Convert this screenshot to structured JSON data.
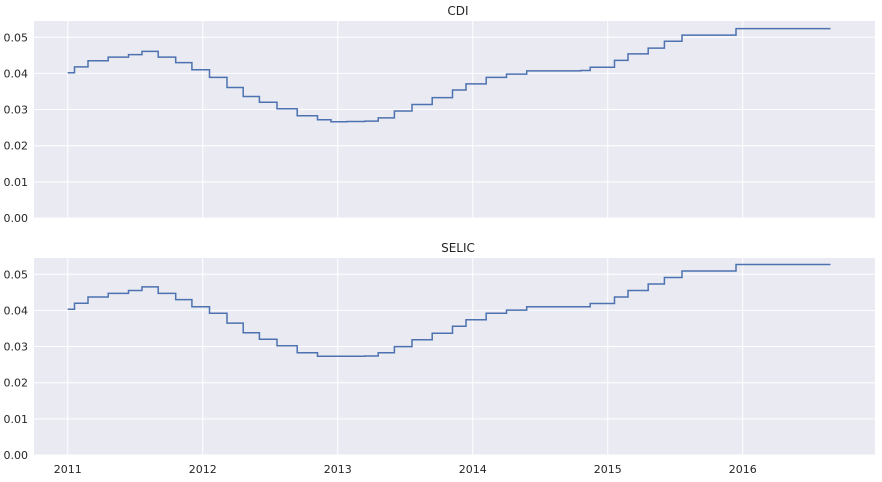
{
  "chart_data": [
    {
      "type": "line",
      "title": "CDI",
      "xlabel": "",
      "ylabel": "",
      "ylim": [
        0,
        0.0545
      ],
      "xlim": [
        2010.75,
        2016.98
      ],
      "y_ticks": [
        "0.00",
        "0.01",
        "0.02",
        "0.03",
        "0.04",
        "0.05"
      ],
      "x_ticks": [],
      "grid": true,
      "series": [
        {
          "color": "#4c72b0",
          "step": true,
          "x": [
            2011.0,
            2011.05,
            2011.15,
            2011.3,
            2011.45,
            2011.55,
            2011.67,
            2011.8,
            2011.92,
            2012.05,
            2012.18,
            2012.3,
            2012.42,
            2012.55,
            2012.7,
            2012.85,
            2012.95,
            2013.07,
            2013.2,
            2013.3,
            2013.42,
            2013.55,
            2013.7,
            2013.85,
            2013.95,
            2014.1,
            2014.25,
            2014.4,
            2014.55,
            2014.8,
            2014.87,
            2015.05,
            2015.15,
            2015.3,
            2015.42,
            2015.55,
            2015.95,
            2016.65
          ],
          "y": [
            0.0402,
            0.0418,
            0.0435,
            0.0445,
            0.0452,
            0.0461,
            0.0445,
            0.043,
            0.041,
            0.0389,
            0.0361,
            0.0336,
            0.032,
            0.0302,
            0.0283,
            0.0272,
            0.0266,
            0.0267,
            0.0268,
            0.0277,
            0.0296,
            0.0314,
            0.0333,
            0.0354,
            0.0371,
            0.0389,
            0.0398,
            0.0407,
            0.0407,
            0.0408,
            0.0417,
            0.0436,
            0.0454,
            0.047,
            0.0489,
            0.0506,
            0.0524,
            0.0524
          ]
        }
      ]
    },
    {
      "type": "line",
      "title": "SELIC",
      "xlabel": "",
      "ylabel": "",
      "ylim": [
        0,
        0.0545
      ],
      "xlim": [
        2010.75,
        2016.98
      ],
      "y_ticks": [
        "0.00",
        "0.01",
        "0.02",
        "0.03",
        "0.04",
        "0.05"
      ],
      "x_ticks": [
        "2011",
        "2012",
        "2013",
        "2014",
        "2015",
        "2016"
      ],
      "grid": true,
      "series": [
        {
          "color": "#4c72b0",
          "step": true,
          "x": [
            2011.0,
            2011.05,
            2011.15,
            2011.3,
            2011.45,
            2011.55,
            2011.67,
            2011.8,
            2011.92,
            2012.05,
            2012.18,
            2012.3,
            2012.42,
            2012.55,
            2012.7,
            2012.85,
            2012.95,
            2013.07,
            2013.2,
            2013.3,
            2013.42,
            2013.55,
            2013.7,
            2013.85,
            2013.95,
            2014.1,
            2014.25,
            2014.4,
            2014.55,
            2014.8,
            2014.87,
            2015.05,
            2015.15,
            2015.3,
            2015.42,
            2015.55,
            2015.95,
            2016.65
          ],
          "y": [
            0.0403,
            0.042,
            0.0437,
            0.0447,
            0.0455,
            0.0465,
            0.0447,
            0.043,
            0.041,
            0.0392,
            0.0365,
            0.0338,
            0.032,
            0.0302,
            0.0283,
            0.0273,
            0.0273,
            0.0273,
            0.0274,
            0.0283,
            0.03,
            0.0319,
            0.0337,
            0.0356,
            0.0374,
            0.0392,
            0.0401,
            0.041,
            0.041,
            0.041,
            0.0419,
            0.0437,
            0.0455,
            0.0473,
            0.0491,
            0.0509,
            0.0527,
            0.0527
          ]
        }
      ]
    }
  ]
}
